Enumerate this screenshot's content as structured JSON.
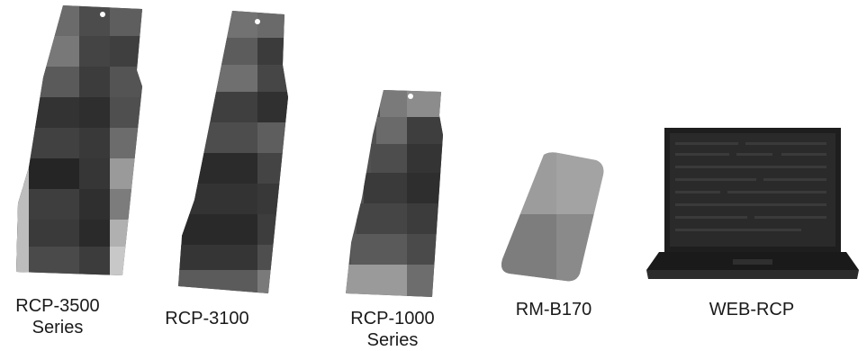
{
  "products": [
    {
      "id": "rcp-3500",
      "line1": "RCP-3500",
      "line2": "Series"
    },
    {
      "id": "rcp-3100",
      "line1": "RCP-3100",
      "line2": ""
    },
    {
      "id": "rcp-1000",
      "line1": "RCP-1000",
      "line2": "Series"
    },
    {
      "id": "rm-b170",
      "line1": "RM-B170",
      "line2": ""
    },
    {
      "id": "web-rcp",
      "line1": "WEB-RCP",
      "line2": ""
    }
  ],
  "colors": {
    "panel_dark": "#3a3a3a",
    "panel_mid": "#555555",
    "panel_light": "#8a8a8a",
    "rm_body": "#8e8e8e",
    "laptop_body": "#1c1c1c",
    "label_text": "#1a1a1a"
  },
  "icons": [
    "rcp-3500-panel-image",
    "rcp-3100-panel-image",
    "rcp-1000-panel-image",
    "rm-b170-device-image",
    "web-rcp-laptop-image"
  ]
}
